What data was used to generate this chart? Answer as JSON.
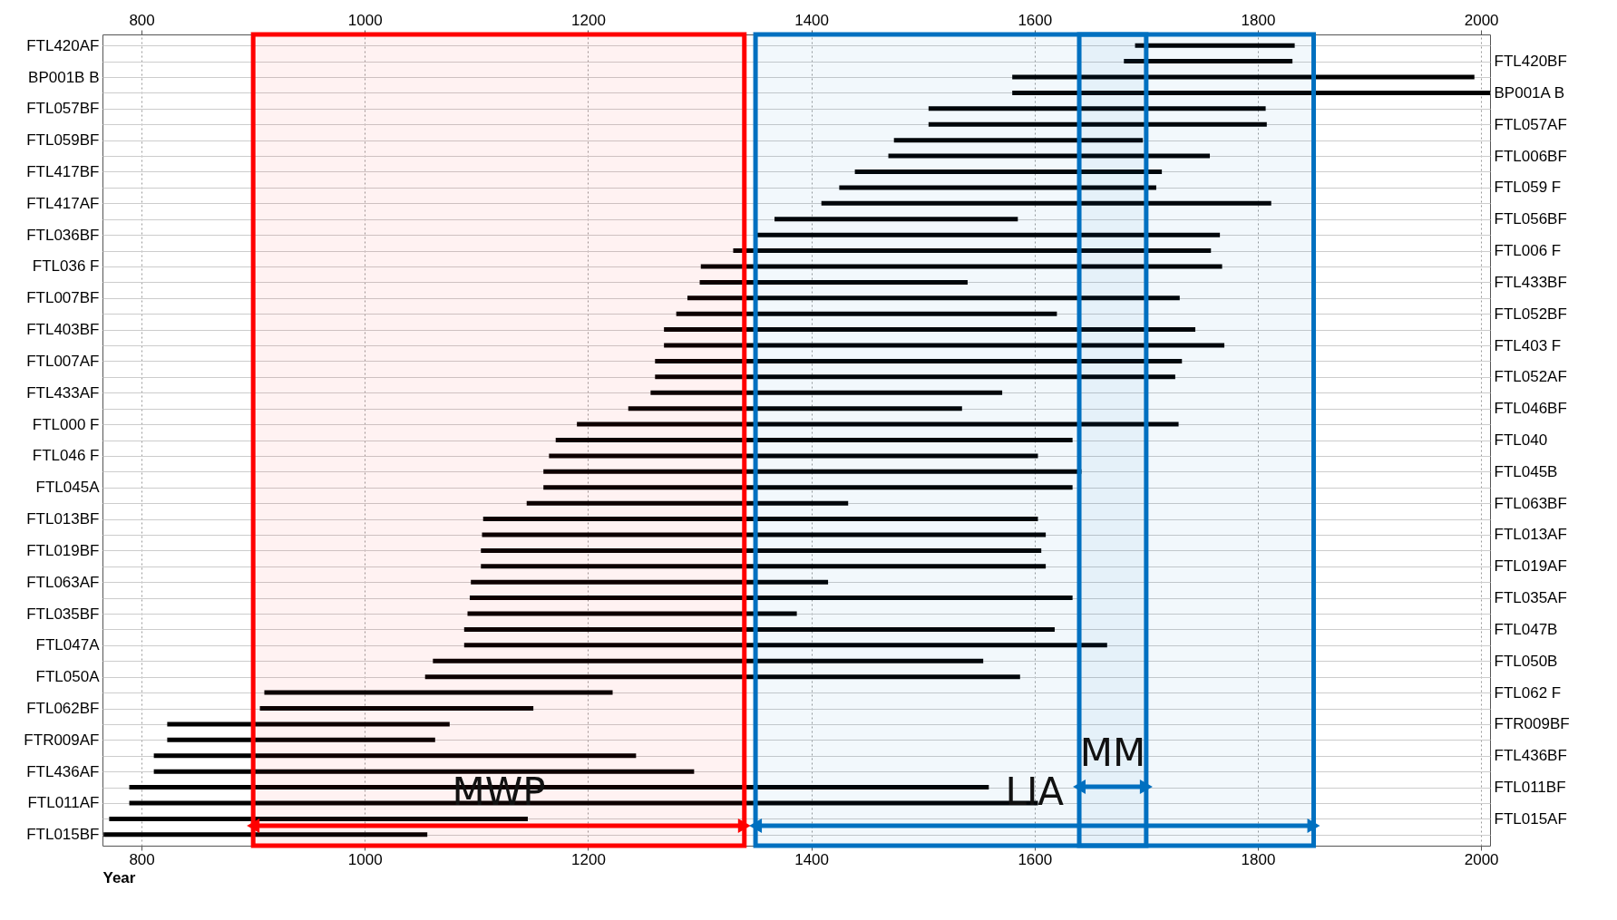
{
  "chart_data": {
    "type": "bar",
    "orientation": "horizontal",
    "xlabel": "Year",
    "categories": [
      "FTL420AF",
      "FTL420BF",
      "BP001B B",
      "BP001A B",
      "FTL057BF",
      "FTL057AF",
      "FTL059BF",
      "FTL006BF",
      "FTL417BF",
      "FTL059 F",
      "FTL417AF",
      "FTL056BF",
      "FTL036BF",
      "FTL006 F",
      "FTL036 F",
      "FTL433BF",
      "FTL007BF",
      "FTL052BF",
      "FTL403BF",
      "FTL403 F",
      "FTL007AF",
      "FTL052AF",
      "FTL433AF",
      "FTL046BF",
      "FTL000 F",
      "FTL040",
      "FTL046 F",
      "FTL045B",
      "FTL045A",
      "FTL063BF",
      "FTL013BF",
      "FTL013AF",
      "FTL019BF",
      "FTL019AF",
      "FTL063AF",
      "FTL035AF",
      "FTL035BF",
      "FTL047B",
      "FTL047A",
      "FTL050B",
      "FTL050A",
      "FTL062 F",
      "FTL062BF",
      "FTR009BF",
      "FTR009AF",
      "FTL436BF",
      "FTL436AF",
      "FTL011BF",
      "FTL011AF",
      "FTL015AF",
      "FTL015BF"
    ],
    "base": [
      1690,
      1680,
      1580,
      1580,
      1505,
      1505,
      1474,
      1469,
      1439,
      1425,
      1409,
      1367,
      1350,
      1330,
      1301,
      1300,
      1289,
      1279,
      1268,
      1268,
      1260,
      1260,
      1256,
      1236,
      1190,
      1171,
      1165,
      1160,
      1160,
      1145,
      1106,
      1105,
      1104,
      1104,
      1095,
      1094,
      1092,
      1089,
      1089,
      1061,
      1054,
      910,
      906,
      823,
      823,
      811,
      811,
      789,
      789,
      771,
      766
    ],
    "values": [
      143,
      151,
      414,
      428,
      302,
      303,
      223,
      288,
      275,
      284,
      403,
      218,
      416,
      428,
      467,
      240,
      441,
      341,
      476,
      502,
      472,
      466,
      315,
      299,
      539,
      463,
      438,
      482,
      474,
      288,
      497,
      505,
      502,
      506,
      320,
      540,
      295,
      529,
      576,
      493,
      533,
      312,
      245,
      253,
      240,
      432,
      484,
      770,
      814,
      375,
      290
    ],
    "color": "#000000",
    "xlim": [
      765,
      2008
    ],
    "xticks": [
      800,
      1000,
      1200,
      1400,
      1600,
      1800,
      2000
    ],
    "x2lim": [
      765,
      2008
    ],
    "x2ticks": [
      800,
      1000,
      1200,
      1400,
      1600,
      1800,
      2000
    ],
    "grid": true,
    "bands": [
      {
        "axis": "x",
        "from": 900,
        "to": 1340,
        "label": "MWP",
        "color": "#ff0000"
      },
      {
        "axis": "x",
        "from": 1350,
        "to": 1850,
        "label": "LIA",
        "color": "#0070c0"
      },
      {
        "axis": "x",
        "from": 1640,
        "to": 1700,
        "label": "MM",
        "color": "#0070c0"
      }
    ]
  }
}
